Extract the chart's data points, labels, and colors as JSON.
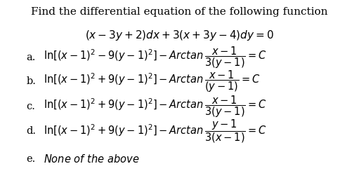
{
  "title_line1": "Find the differential equation of the following function",
  "title_line2": "$(x - 3y + 2)dx + 3(x + 3y - 4)dy = 0$",
  "options": [
    {
      "label": "a.",
      "text": "$\\mathrm{ln}[(x-1)^2 - 9(y-1)^2] - \\mathit{Arctan}\\,\\dfrac{x-1}{3(y-1)} = C$"
    },
    {
      "label": "b.",
      "text": "$\\mathrm{ln}[(x-1)^2 + 9(y-1)^2] - \\mathit{Arctan}\\,\\dfrac{x-1}{(y-1)} = C$"
    },
    {
      "label": "c.",
      "text": "$\\mathrm{ln}[(x-1)^2 + 9(y-1)^2] - \\mathit{Arctan}\\,\\dfrac{x-1}{3(y-1)} = C$"
    },
    {
      "label": "d.",
      "text": "$\\mathrm{ln}[(x-1)^2 + 9(y-1)^2] - \\mathit{Arctan}\\,\\dfrac{y-1}{3(x-1)} = C$"
    },
    {
      "label": "e.",
      "text": "$\\mathit{None\\ of\\ the\\ above}$"
    }
  ],
  "bg_color": "#ffffff",
  "text_color": "#000000",
  "title_fontsize": 11.0,
  "option_fontsize": 10.5
}
